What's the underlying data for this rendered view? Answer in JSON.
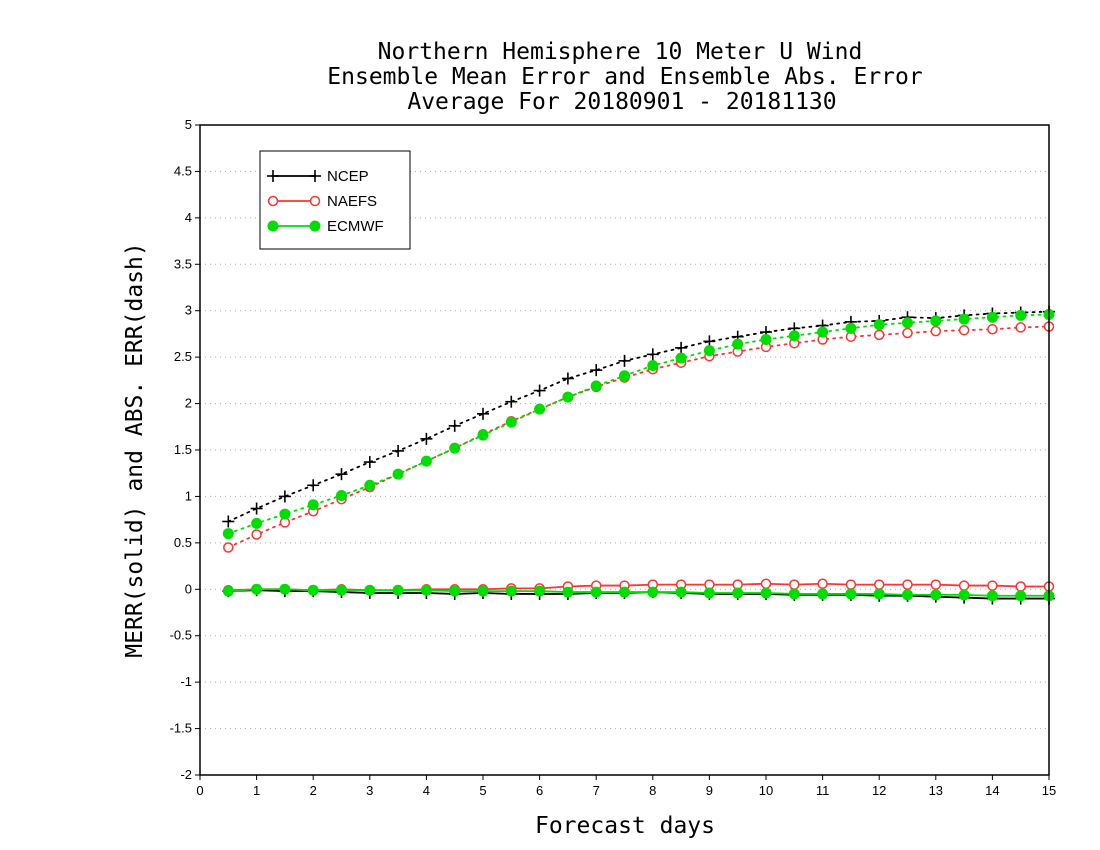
{
  "chart_data": {
    "type": "line",
    "title": [
      "Northern Hemisphere 10 Meter U Wind",
      "Ensemble Mean Error and Ensemble Abs. Error",
      "Average For 20180901 - 20181130"
    ],
    "xlabel": "Forecast days",
    "ylabel": "MERR(solid) and ABS. ERR(dash)",
    "xlim": [
      0,
      15
    ],
    "ylim": [
      -2,
      5
    ],
    "xticks": [
      "0",
      "1",
      "2",
      "3",
      "4",
      "5",
      "6",
      "7",
      "8",
      "9",
      "10",
      "11",
      "12",
      "13",
      "14",
      "15"
    ],
    "yticks": [
      "-2",
      "-1.5",
      "-1",
      "-0.5",
      "0",
      "0.5",
      "1",
      "1.5",
      "2",
      "2.5",
      "3",
      "3.5",
      "4",
      "4.5",
      "5"
    ],
    "grid": "horizontal-dotted",
    "legend_position": "top-left",
    "x": [
      0.5,
      1,
      1.5,
      2,
      2.5,
      3,
      3.5,
      4,
      4.5,
      5,
      5.5,
      6,
      6.5,
      7,
      7.5,
      8,
      8.5,
      9,
      9.5,
      10,
      10.5,
      11,
      11.5,
      12,
      12.5,
      13,
      13.5,
      14,
      14.5,
      15
    ],
    "series": [
      {
        "name": "NCEP",
        "color": "#000000",
        "marker": "plus",
        "abs_err": [
          0.73,
          0.87,
          1.0,
          1.12,
          1.24,
          1.37,
          1.49,
          1.62,
          1.76,
          1.89,
          2.02,
          2.14,
          2.27,
          2.36,
          2.46,
          2.53,
          2.6,
          2.67,
          2.72,
          2.77,
          2.81,
          2.84,
          2.88,
          2.89,
          2.93,
          2.92,
          2.95,
          2.97,
          2.98,
          2.99
        ],
        "mean_err": [
          -0.02,
          -0.01,
          -0.02,
          -0.02,
          -0.03,
          -0.04,
          -0.04,
          -0.04,
          -0.05,
          -0.04,
          -0.05,
          -0.05,
          -0.05,
          -0.04,
          -0.04,
          -0.03,
          -0.04,
          -0.05,
          -0.05,
          -0.05,
          -0.06,
          -0.06,
          -0.06,
          -0.07,
          -0.07,
          -0.08,
          -0.09,
          -0.1,
          -0.1,
          -0.1
        ]
      },
      {
        "name": "NAEFS",
        "color": "#ff3333",
        "marker": "open-circle",
        "abs_err": [
          0.45,
          0.59,
          0.72,
          0.84,
          0.97,
          1.1,
          1.24,
          1.38,
          1.52,
          1.67,
          1.81,
          1.94,
          2.07,
          2.18,
          2.28,
          2.37,
          2.44,
          2.51,
          2.56,
          2.61,
          2.65,
          2.69,
          2.72,
          2.74,
          2.76,
          2.78,
          2.79,
          2.8,
          2.82,
          2.83
        ],
        "mean_err": [
          -0.01,
          0.0,
          0.0,
          -0.01,
          0.0,
          -0.01,
          -0.01,
          0.0,
          0.0,
          0.0,
          0.01,
          0.01,
          0.03,
          0.04,
          0.04,
          0.05,
          0.05,
          0.05,
          0.05,
          0.06,
          0.05,
          0.06,
          0.05,
          0.05,
          0.05,
          0.05,
          0.04,
          0.04,
          0.03,
          0.03
        ]
      },
      {
        "name": "ECMWF",
        "color": "#00dd00",
        "marker": "filled-circle",
        "abs_err": [
          0.6,
          0.71,
          0.81,
          0.91,
          1.01,
          1.12,
          1.24,
          1.38,
          1.52,
          1.66,
          1.8,
          1.94,
          2.07,
          2.19,
          2.3,
          2.41,
          2.49,
          2.57,
          2.64,
          2.69,
          2.73,
          2.77,
          2.81,
          2.85,
          2.87,
          2.89,
          2.91,
          2.93,
          2.95,
          2.96
        ],
        "mean_err": [
          -0.02,
          0.0,
          0.0,
          -0.01,
          -0.01,
          -0.01,
          -0.01,
          -0.01,
          -0.02,
          -0.02,
          -0.02,
          -0.02,
          -0.03,
          -0.03,
          -0.03,
          -0.03,
          -0.03,
          -0.04,
          -0.04,
          -0.04,
          -0.05,
          -0.05,
          -0.05,
          -0.05,
          -0.06,
          -0.06,
          -0.06,
          -0.07,
          -0.07,
          -0.07
        ]
      }
    ]
  }
}
